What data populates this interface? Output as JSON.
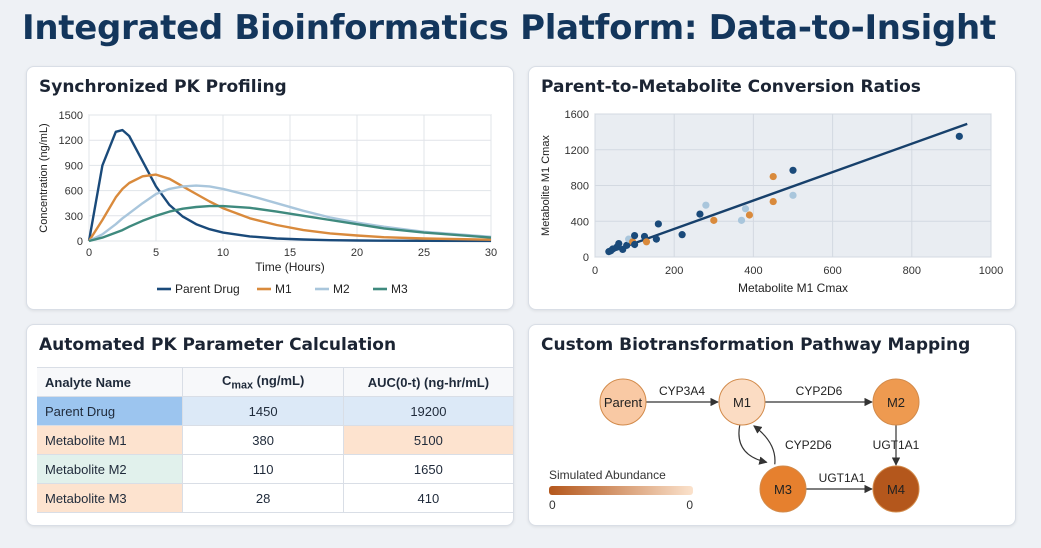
{
  "page_title": "Integrated Bioinformatics Platform: Data-to-Insight",
  "pk_chart": {
    "title": "Synchronized PK Profiling",
    "chart_data": {
      "type": "line",
      "xlabel": "Time (Hours)",
      "ylabel": "Concentration (ng/mL)",
      "xlim": [
        0,
        30
      ],
      "ylim": [
        0,
        1500
      ],
      "xticks": [
        0,
        5,
        10,
        15,
        20,
        25,
        30
      ],
      "yticks": [
        0,
        300,
        600,
        900,
        1200,
        1500
      ],
      "grid": true,
      "legend_position": "bottom",
      "x": [
        0,
        1,
        2,
        2.5,
        3,
        4,
        5,
        6,
        7,
        8,
        9,
        10,
        12,
        14,
        16,
        18,
        20,
        22,
        25,
        30
      ],
      "series": [
        {
          "name": "Parent Drug",
          "color": "#1a4a7a",
          "values": [
            0,
            900,
            1300,
            1320,
            1250,
            950,
            650,
            430,
            290,
            200,
            140,
            100,
            55,
            30,
            18,
            10,
            6,
            4,
            2,
            1
          ]
        },
        {
          "name": "M1",
          "color": "#d98a3c",
          "values": [
            0,
            250,
            520,
            620,
            690,
            770,
            790,
            740,
            650,
            560,
            470,
            390,
            270,
            190,
            130,
            90,
            65,
            45,
            30,
            15
          ]
        },
        {
          "name": "M2",
          "color": "#a9c6dc",
          "values": [
            0,
            80,
            200,
            270,
            330,
            450,
            560,
            620,
            650,
            660,
            650,
            620,
            540,
            450,
            360,
            280,
            220,
            170,
            110,
            50
          ]
        },
        {
          "name": "M3",
          "color": "#3f8a7e",
          "values": [
            0,
            40,
            100,
            130,
            170,
            240,
            300,
            350,
            385,
            405,
            415,
            415,
            395,
            350,
            300,
            250,
            200,
            150,
            100,
            40
          ]
        }
      ]
    }
  },
  "ratio_chart": {
    "title": "Parent-to-Metabolite Conversion Ratios",
    "chart_data": {
      "type": "scatter",
      "xlabel": "Metabolite M1 Cmax",
      "ylabel": "Metabolite M1 Cmax",
      "xlim": [
        0,
        1000
      ],
      "ylim": [
        0,
        1600
      ],
      "xticks": [
        0,
        200,
        400,
        600,
        800,
        1000
      ],
      "yticks": [
        0,
        400,
        800,
        1200,
        1600
      ],
      "grid": true,
      "trendline": {
        "x": [
          40,
          940
        ],
        "y": [
          60,
          1490
        ],
        "color": "#17406b"
      },
      "points": [
        {
          "x": 35,
          "y": 60,
          "color": "#1a4a7a"
        },
        {
          "x": 40,
          "y": 70,
          "color": "#1a4a7a"
        },
        {
          "x": 45,
          "y": 90,
          "color": "#1a4a7a"
        },
        {
          "x": 55,
          "y": 110,
          "color": "#1a4a7a"
        },
        {
          "x": 60,
          "y": 150,
          "color": "#1a4a7a"
        },
        {
          "x": 70,
          "y": 85,
          "color": "#1a4a7a"
        },
        {
          "x": 80,
          "y": 130,
          "color": "#1a4a7a"
        },
        {
          "x": 85,
          "y": 200,
          "color": "#a9c6dc"
        },
        {
          "x": 95,
          "y": 170,
          "color": "#d98a3c"
        },
        {
          "x": 100,
          "y": 140,
          "color": "#1a4a7a"
        },
        {
          "x": 100,
          "y": 240,
          "color": "#1a4a7a"
        },
        {
          "x": 125,
          "y": 230,
          "color": "#1a4a7a"
        },
        {
          "x": 130,
          "y": 170,
          "color": "#d98a3c"
        },
        {
          "x": 155,
          "y": 200,
          "color": "#1a4a7a"
        },
        {
          "x": 160,
          "y": 370,
          "color": "#1a4a7a"
        },
        {
          "x": 220,
          "y": 250,
          "color": "#1a4a7a"
        },
        {
          "x": 265,
          "y": 480,
          "color": "#1a4a7a"
        },
        {
          "x": 280,
          "y": 580,
          "color": "#a9c6dc"
        },
        {
          "x": 300,
          "y": 410,
          "color": "#d98a3c"
        },
        {
          "x": 370,
          "y": 410,
          "color": "#a9c6dc"
        },
        {
          "x": 380,
          "y": 540,
          "color": "#a9c6dc"
        },
        {
          "x": 390,
          "y": 470,
          "color": "#d98a3c"
        },
        {
          "x": 450,
          "y": 620,
          "color": "#d98a3c"
        },
        {
          "x": 450,
          "y": 900,
          "color": "#d98a3c"
        },
        {
          "x": 500,
          "y": 970,
          "color": "#1a4a7a"
        },
        {
          "x": 500,
          "y": 690,
          "color": "#a9c6dc"
        },
        {
          "x": 920,
          "y": 1350,
          "color": "#1a4a7a"
        }
      ]
    }
  },
  "table_card": {
    "title": "Automated PK Parameter Calculation",
    "headers": {
      "analyte": "Analyte Name",
      "cmax_c": "C",
      "cmax_sub": "max",
      "cmax_unit": " (ng/mL)",
      "auc": "AUC(0-t) (ng-hr/mL)"
    },
    "rows": [
      {
        "name": "Parent Drug",
        "cmax": "1450",
        "auc": "19200",
        "name_bg": "#9cc5ef",
        "row_bg": "#dce9f7",
        "auc_bg": "#dce9f7"
      },
      {
        "name": "Metabolite M1",
        "cmax": "380",
        "auc": "5100",
        "name_bg": "#fde3cf",
        "row_bg": "#ffffff",
        "auc_bg": "#fde3cf"
      },
      {
        "name": "Metabolite M2",
        "cmax": "110",
        "auc": "1650",
        "name_bg": "#e1f1ec",
        "row_bg": "#ffffff",
        "auc_bg": "#ffffff"
      },
      {
        "name": "Metabolite M3",
        "cmax": "28",
        "auc": "410",
        "name_bg": "#fde3cf",
        "row_bg": "#ffffff",
        "auc_bg": "#ffffff"
      }
    ]
  },
  "pathway_card": {
    "title": "Custom Biotransformation Pathway Mapping",
    "nodes": [
      {
        "id": "Parent",
        "label": "Parent",
        "color": "#f9c9a4"
      },
      {
        "id": "M1",
        "label": "M1",
        "color": "#fbdcc3"
      },
      {
        "id": "M2",
        "label": "M2",
        "color": "#ee9a50"
      },
      {
        "id": "M3",
        "label": "M3",
        "color": "#e6802e"
      },
      {
        "id": "M4",
        "label": "M4",
        "color": "#b4571c"
      }
    ],
    "edges": [
      {
        "from": "Parent",
        "to": "M1",
        "label": "CYP3A4"
      },
      {
        "from": "M1",
        "to": "M2",
        "label": "CYP2D6"
      },
      {
        "from": "M1",
        "to": "M3",
        "label": "CYP2D6"
      },
      {
        "from": "M2",
        "to": "M4",
        "label": "UGT1A1"
      },
      {
        "from": "M3",
        "to": "M4",
        "label": "UGT1A1"
      }
    ],
    "legend": {
      "title": "Simulated Abundance",
      "min_label": "0",
      "max_label": "0",
      "colors": [
        "#b4571c",
        "#fbe2cc"
      ]
    }
  }
}
